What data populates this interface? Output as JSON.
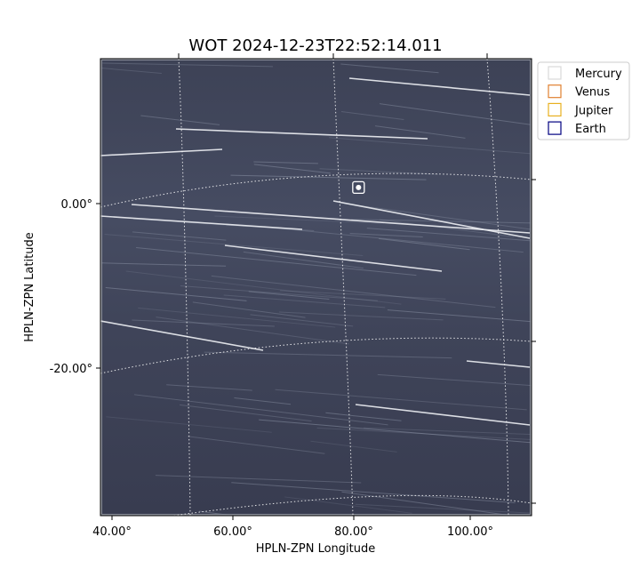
{
  "chart_data": {
    "type": "scatter",
    "title": "WOT 2024-12-23T22:52:14.011",
    "xlabel": "HPLN-ZPN Longitude",
    "ylabel": "HPLN-ZPN Latitude",
    "xlim": [
      38,
      110
    ],
    "ylim": [
      -38,
      17
    ],
    "x_ticks": [
      40,
      60,
      80,
      100
    ],
    "x_tick_labels": [
      "40.00°",
      "60.00°",
      "80.00°",
      "100.00°"
    ],
    "y_ticks": [
      0,
      -20
    ],
    "y_tick_labels": [
      "0.00°",
      "-20.00°"
    ],
    "grid": true,
    "grid_style": "dotted",
    "legend_position": "outside-top-right",
    "series": [
      {
        "name": "Mercury",
        "color": "#d9d9d9",
        "x": [],
        "y": []
      },
      {
        "name": "Venus",
        "color": "#e08030",
        "x": [],
        "y": []
      },
      {
        "name": "Jupiter",
        "color": "#e8b020",
        "x": [],
        "y": []
      },
      {
        "name": "Earth",
        "color": "#000080",
        "x": [
          81.1
        ],
        "y": [
          1.5
        ]
      }
    ],
    "image_colormap": "bone",
    "background_color": "#3a3e52"
  }
}
